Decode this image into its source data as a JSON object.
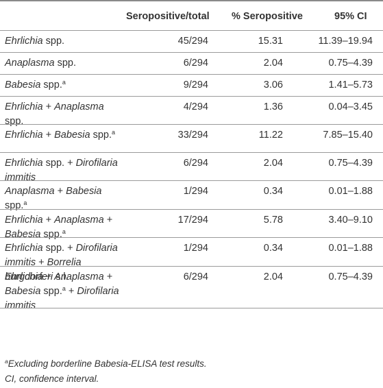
{
  "headers": {
    "seropositive_total": "Seropositive/total",
    "pct_seropositive": "% Seropositive",
    "ci": "95% CI"
  },
  "rows": [
    {
      "label": [
        {
          "t": "Ehrlichia",
          "i": true
        },
        {
          "t": " spp."
        }
      ],
      "total": "45/294",
      "pct": "15.31",
      "ci": "11.39–19.94"
    },
    {
      "label": [
        {
          "t": "Anaplasma",
          "i": true
        },
        {
          "t": " spp."
        }
      ],
      "total": "6/294",
      "pct": "2.04",
      "ci": "0.75–4.39"
    },
    {
      "label": [
        {
          "t": "Babesia",
          "i": true
        },
        {
          "t": " spp."
        },
        {
          "t": "a",
          "sup": true
        }
      ],
      "total": "9/294",
      "pct": "3.06",
      "ci": "1.41–5.73"
    },
    {
      "label": [
        {
          "t": "Ehrlichia",
          "i": true
        },
        {
          "t": " + "
        },
        {
          "t": "Anaplasma",
          "i": true
        },
        {
          "t": " spp."
        }
      ],
      "total": "4/294",
      "pct": "1.36",
      "ci": "0.04–3.45"
    },
    {
      "label": [
        {
          "t": "Ehrlichia",
          "i": true
        },
        {
          "t": " + "
        },
        {
          "t": "Babesia",
          "i": true
        },
        {
          "t": " spp."
        },
        {
          "t": "a",
          "sup": true
        }
      ],
      "total": "33/294",
      "pct": "11.22",
      "ci": "7.85–15.40"
    },
    {
      "label": [
        {
          "t": "Ehrlichia",
          "i": true
        },
        {
          "t": " spp. + "
        },
        {
          "t": "Dirofilaria immitis",
          "i": true
        }
      ],
      "total": "6/294",
      "pct": "2.04",
      "ci": "0.75–4.39"
    },
    {
      "label": [
        {
          "t": "Anaplasma",
          "i": true
        },
        {
          "t": " + "
        },
        {
          "t": "Babesia",
          "i": true
        },
        {
          "t": " spp."
        },
        {
          "t": "a",
          "sup": true
        }
      ],
      "total": "1/294",
      "pct": "0.34",
      "ci": "0.01–1.88"
    },
    {
      "label": [
        {
          "t": "Ehrlichia",
          "i": true
        },
        {
          "t": " + "
        },
        {
          "t": "Anaplasma",
          "i": true
        },
        {
          "t": " + "
        },
        {
          "t": "Babesia",
          "i": true
        },
        {
          "t": " spp."
        },
        {
          "t": "a",
          "sup": true
        }
      ],
      "total": "17/294",
      "pct": "5.78",
      "ci": "3.40–9.10"
    },
    {
      "label": [
        {
          "t": "Ehrlichia",
          "i": true
        },
        {
          "t": " spp. + "
        },
        {
          "t": "Dirofilaria immitis",
          "i": true
        },
        {
          "t": " + "
        },
        {
          "t": "Borrelia burgdorferi",
          "i": true
        },
        {
          "t": " s.l."
        }
      ],
      "total": "1/294",
      "pct": "0.34",
      "ci": "0.01–1.88"
    },
    {
      "label": [
        {
          "t": "Ehrlichia",
          "i": true
        },
        {
          "t": " + "
        },
        {
          "t": "Anaplasma",
          "i": true
        },
        {
          "t": " + "
        },
        {
          "t": "Babesia",
          "i": true
        },
        {
          "t": " spp."
        },
        {
          "t": "a",
          "sup": true
        },
        {
          "t": " + "
        },
        {
          "t": "Dirofilaria immitis",
          "i": true
        }
      ],
      "total": "6/294",
      "pct": "2.04",
      "ci": "0.75–4.39"
    }
  ],
  "footnotes": {
    "a_marker": "a",
    "a_text": "Excluding borderline Babesia-ELISA test results.",
    "ci_text": "CI, confidence interval."
  }
}
